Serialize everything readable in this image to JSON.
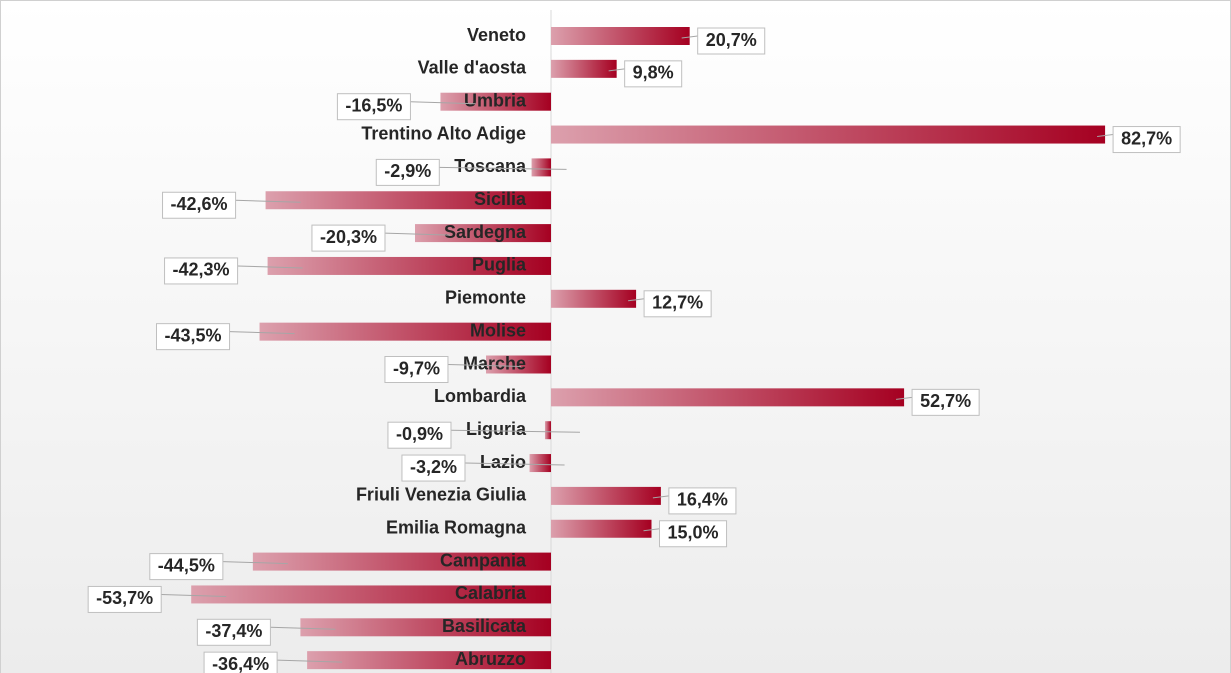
{
  "chart_data": {
    "type": "bar",
    "orientation": "horizontal",
    "categories": [
      "Veneto",
      "Valle d'aosta",
      "Umbria",
      "Trentino Alto Adige",
      "Toscana",
      "Sicilia",
      "Sardegna",
      "Puglia",
      "Piemonte",
      "Molise",
      "Marche",
      "Lombardia",
      "Liguria",
      "Lazio",
      "Friuli Venezia Giulia",
      "Emilia Romagna",
      "Campania",
      "Calabria",
      "Basilicata",
      "Abruzzo"
    ],
    "values": [
      20.7,
      9.8,
      -16.5,
      82.7,
      -2.9,
      -42.6,
      -20.3,
      -42.3,
      12.7,
      -43.5,
      -9.7,
      52.7,
      -0.9,
      -3.2,
      16.4,
      15.0,
      -44.5,
      -53.7,
      -37.4,
      -36.4
    ],
    "value_labels": [
      "20,7%",
      "9,8%",
      "-16,5%",
      "82,7%",
      "-2,9%",
      "-42,6%",
      "-20,3%",
      "-42,3%",
      "12,7%",
      "-43,5%",
      "-9,7%",
      "52,7%",
      "-0,9%",
      "-3,2%",
      "16,4%",
      "15,0%",
      "-44,5%",
      "-53,7%",
      "-37,4%",
      "-36,4%"
    ],
    "color": "#a50021",
    "xlim": [
      -80,
      100
    ],
    "grid": false
  }
}
